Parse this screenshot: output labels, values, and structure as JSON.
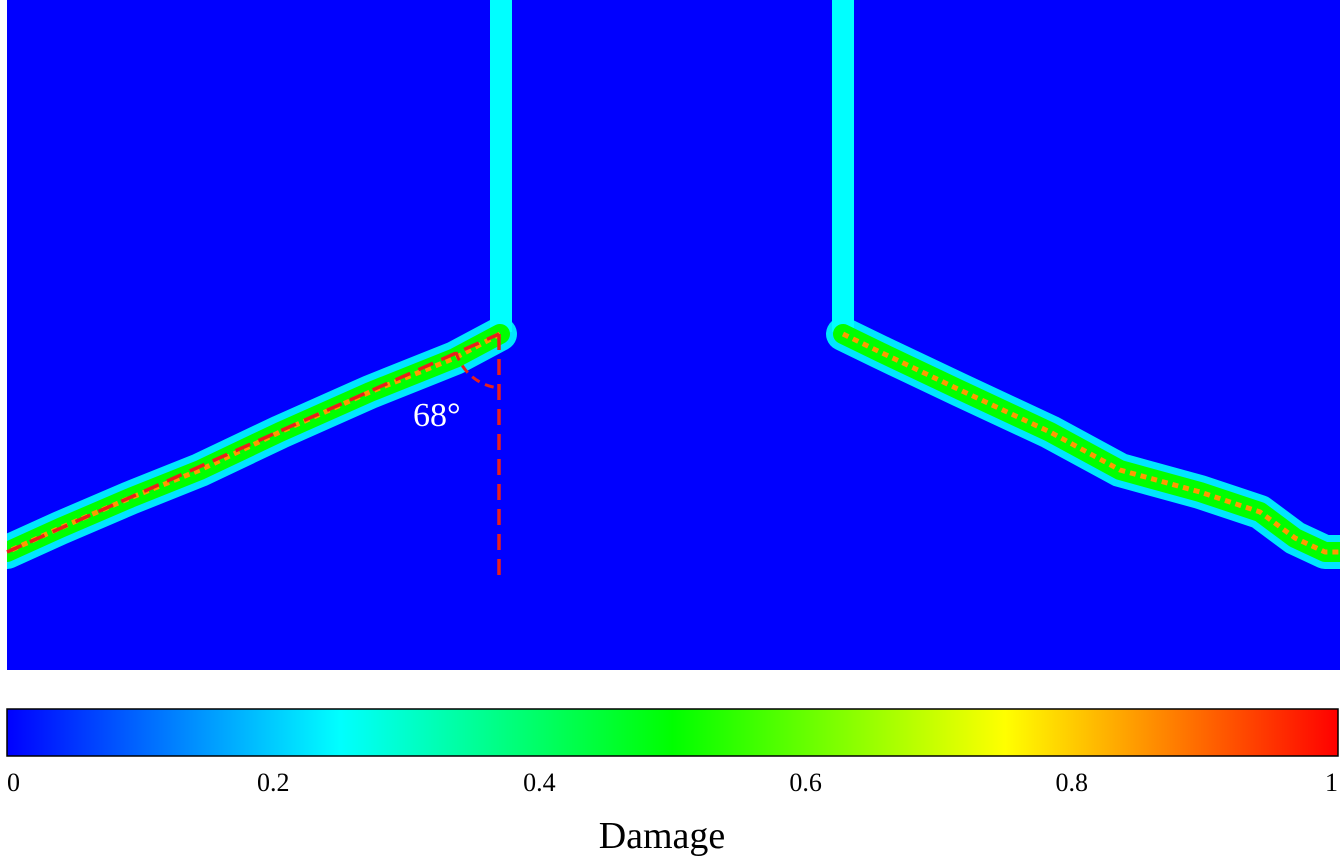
{
  "chart_data": {
    "type": "heatmap",
    "field": "Damage",
    "colormap": {
      "min": 0,
      "max": 1,
      "stops": [
        {
          "value": 0,
          "color": "#0000ff"
        },
        {
          "value": 0.25,
          "color": "#00ffff"
        },
        {
          "value": 0.5,
          "color": "#00ff00"
        },
        {
          "value": 0.75,
          "color": "#ffff00"
        },
        {
          "value": 1,
          "color": "#ff0000"
        }
      ],
      "tick_labels": [
        "0",
        "0.2",
        "0.4",
        "0.6",
        "0.8",
        "1"
      ],
      "tick_values": [
        0,
        0.2,
        0.4,
        0.6,
        0.8,
        1
      ]
    },
    "colorbar_label": "Damage",
    "background_value": 0,
    "notch_value": 0.25,
    "crack_band_value": 0.5,
    "crack_core_value": 0.85,
    "annotations": [
      {
        "text": "68°",
        "kind": "angle",
        "color": "#ffffff"
      }
    ],
    "annotation_color": "#e8201c"
  }
}
